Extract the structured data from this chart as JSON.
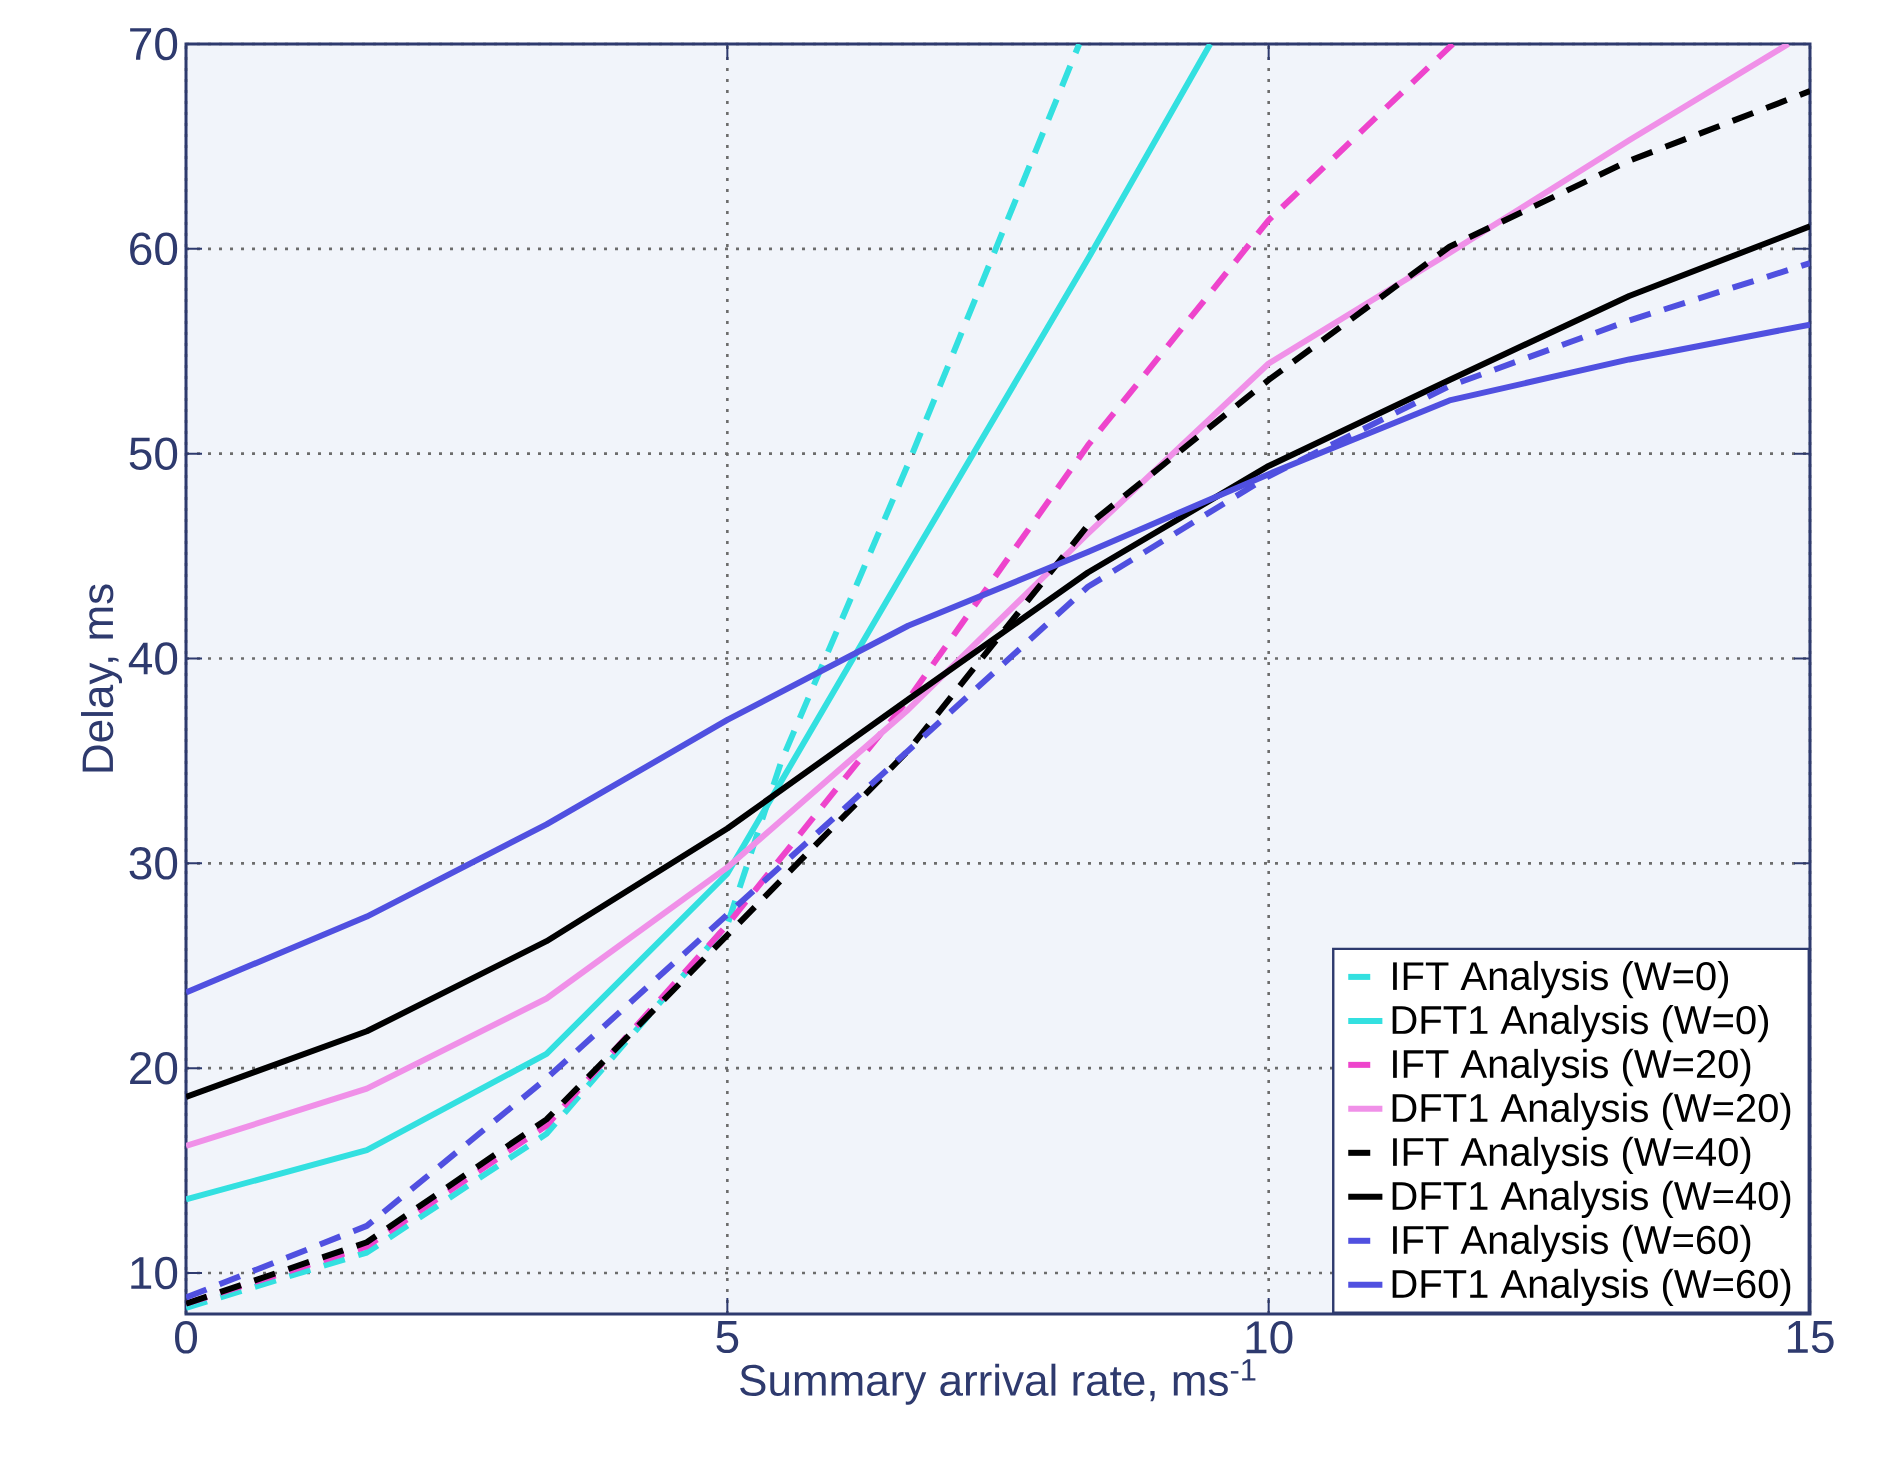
{
  "chart_data": {
    "type": "line",
    "xlabel": "Summary arrival rate, ms$^{-1}$",
    "ylabel": "Delay, ms",
    "xlim": [
      0,
      15
    ],
    "ylim": [
      8,
      70
    ],
    "xticks": [
      0,
      5,
      10,
      15
    ],
    "yticks": [
      10,
      20,
      30,
      40,
      50,
      60,
      70
    ],
    "grid": true,
    "legend": "bottom right",
    "series": [
      {
        "name": "IFT Analysis (W=0)",
        "color": "#33e0e0",
        "line_style": "dashed",
        "x": [
          0,
          1.67,
          3.33,
          5,
          5.5,
          6.67,
          8.25
        ],
        "values": [
          8.3,
          11,
          16.8,
          27,
          35,
          49.5,
          70
        ]
      },
      {
        "name": "DFT1 Analysis (W=0)",
        "color": "#33e0e0",
        "line_style": "solid",
        "x": [
          0,
          1.67,
          3.33,
          5,
          6.67,
          8.33,
          9.46
        ],
        "values": [
          13.6,
          16,
          20.7,
          29.5,
          44.6,
          59.5,
          70
        ]
      },
      {
        "name": "IFT Analysis (W=20)",
        "color": "#ee44cc",
        "line_style": "dashed",
        "x": [
          0,
          1.67,
          3.33,
          5,
          6.67,
          8.33,
          10,
          11.7
        ],
        "values": [
          8.5,
          11.3,
          17.2,
          27,
          38,
          50.4,
          61.4,
          70
        ]
      },
      {
        "name": "DFT1 Analysis (W=20)",
        "color": "#f090e8",
        "line_style": "solid",
        "x": [
          0,
          1.67,
          3.33,
          5,
          6.67,
          8.33,
          10,
          11.67,
          13.33,
          14.8
        ],
        "values": [
          16.2,
          19,
          23.4,
          29.8,
          37.5,
          46.1,
          54.4,
          59.8,
          65.3,
          70
        ]
      },
      {
        "name": "IFT Analysis (W=40)",
        "color": "#000000",
        "line_style": "dashed",
        "x": [
          0,
          1.67,
          3.33,
          5,
          6.67,
          8.33,
          10,
          11.67,
          13.33,
          15
        ],
        "values": [
          8.5,
          11.5,
          17.5,
          26.5,
          35.5,
          46.5,
          53.6,
          60.1,
          64.3,
          67.7
        ]
      },
      {
        "name": "DFT1 Analysis (W=40)",
        "color": "#000000",
        "line_style": "solid",
        "x": [
          0,
          1.67,
          3.33,
          5,
          6.67,
          8.33,
          10,
          11.67,
          13.33,
          15
        ],
        "values": [
          18.6,
          21.8,
          26.2,
          31.7,
          38,
          44.2,
          49.4,
          53.6,
          57.7,
          61.1
        ]
      },
      {
        "name": "IFT Analysis (W=60)",
        "color": "#5050e0",
        "line_style": "dashed",
        "x": [
          0,
          1.67,
          3.33,
          5,
          6.67,
          8.33,
          10,
          11.67,
          13.33,
          15
        ],
        "values": [
          8.8,
          12.3,
          19.5,
          27.5,
          35.5,
          43.5,
          48.9,
          53.3,
          56.5,
          59.3
        ]
      },
      {
        "name": "DFT1 Analysis (W=60)",
        "color": "#5050e0",
        "line_style": "solid",
        "x": [
          0,
          1.67,
          3.33,
          5,
          6.67,
          8.33,
          10,
          11.67,
          13.33,
          15
        ],
        "values": [
          23.7,
          27.4,
          31.9,
          37,
          41.6,
          45.2,
          49,
          52.6,
          54.6,
          56.3
        ]
      }
    ]
  }
}
